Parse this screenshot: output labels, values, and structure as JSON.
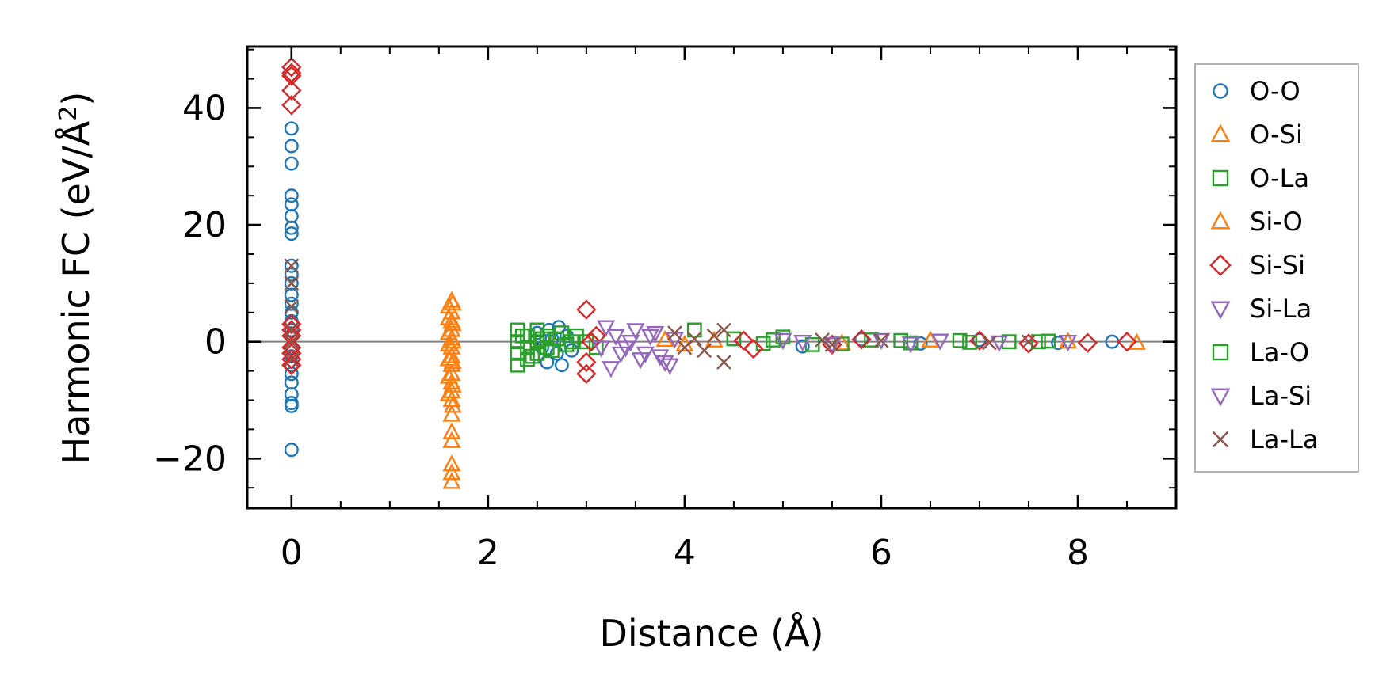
{
  "chart_data": {
    "type": "scatter",
    "title": "",
    "xlabel": "Distance (Å)",
    "ylabel_main": "Harmonic FC (eV/Å",
    "ylabel_sup": "2",
    "ylabel_end": ")",
    "xlim": [
      -0.45,
      9.0
    ],
    "ylim": [
      -28.5,
      50.5
    ],
    "xticks": [
      {
        "v": 0,
        "label": "0"
      },
      {
        "v": 2,
        "label": "2"
      },
      {
        "v": 4,
        "label": "4"
      },
      {
        "v": 6,
        "label": "6"
      },
      {
        "v": 8,
        "label": "8"
      }
    ],
    "yticks": [
      {
        "v": -20,
        "label": "−20"
      },
      {
        "v": 0,
        "label": "0"
      },
      {
        "v": 20,
        "label": "20"
      },
      {
        "v": 40,
        "label": "40"
      }
    ],
    "zero_line": true,
    "grid": false,
    "legend_position": "outside-right",
    "series": [
      {
        "name": "O-O",
        "marker": "circle",
        "color": "#1f77b4",
        "points": [
          [
            0,
            36.5
          ],
          [
            0,
            33.5
          ],
          [
            0,
            30.5
          ],
          [
            0,
            25
          ],
          [
            0,
            23.5
          ],
          [
            0,
            21.5
          ],
          [
            0,
            19.5
          ],
          [
            0,
            18.5
          ],
          [
            0,
            13
          ],
          [
            0,
            11.5
          ],
          [
            0,
            10
          ],
          [
            0,
            8
          ],
          [
            0,
            6.5
          ],
          [
            0,
            5
          ],
          [
            0,
            3.5
          ],
          [
            0,
            2
          ],
          [
            0,
            1
          ],
          [
            0,
            -1
          ],
          [
            0,
            -2.5
          ],
          [
            0,
            -4
          ],
          [
            0,
            -5.5
          ],
          [
            0,
            -7
          ],
          [
            0,
            -9
          ],
          [
            0,
            -10.5
          ],
          [
            0,
            -11
          ],
          [
            0,
            -18.5
          ],
          [
            2.5,
            1.5
          ],
          [
            2.55,
            -1
          ],
          [
            2.6,
            -3.5
          ],
          [
            2.62,
            2
          ],
          [
            2.65,
            0.5
          ],
          [
            2.7,
            -2
          ],
          [
            2.72,
            2.5
          ],
          [
            2.75,
            -4
          ],
          [
            2.8,
            1
          ],
          [
            2.85,
            -1.5
          ],
          [
            5.2,
            -0.8
          ],
          [
            5.8,
            0.4
          ],
          [
            6.4,
            -0.3
          ],
          [
            7.0,
            0.3
          ],
          [
            7.8,
            -0.2
          ],
          [
            8.35,
            0
          ]
        ]
      },
      {
        "name": "O-Si",
        "marker": "triangle-up",
        "color": "#ff7f0e",
        "points": [
          [
            1.63,
            7
          ],
          [
            1.63,
            5
          ],
          [
            1.63,
            3.5
          ],
          [
            1.63,
            2
          ],
          [
            1.63,
            0.5
          ],
          [
            1.63,
            -1
          ],
          [
            1.63,
            -2.5
          ],
          [
            1.63,
            -4
          ],
          [
            1.63,
            -5.5
          ],
          [
            1.63,
            -7
          ],
          [
            1.63,
            -8.5
          ],
          [
            1.63,
            -10
          ],
          [
            1.6,
            6
          ],
          [
            1.6,
            4
          ],
          [
            1.6,
            1.5
          ],
          [
            1.6,
            -0.5
          ],
          [
            1.6,
            -3
          ],
          [
            1.6,
            -6
          ],
          [
            1.6,
            -9
          ],
          [
            1.63,
            -12.5
          ],
          [
            1.63,
            -15.5
          ],
          [
            1.63,
            -17
          ],
          [
            1.63,
            -21
          ],
          [
            1.63,
            -22.5
          ],
          [
            1.63,
            -24
          ],
          [
            3.8,
            0.3
          ],
          [
            4.0,
            -0.5
          ],
          [
            6.5,
            0.2
          ],
          [
            7.9,
            0
          ],
          [
            8.6,
            -0.2
          ]
        ]
      },
      {
        "name": "O-La",
        "marker": "square",
        "color": "#2ca02c",
        "points": [
          [
            2.3,
            2
          ],
          [
            2.3,
            0
          ],
          [
            2.3,
            -2
          ],
          [
            2.3,
            -4
          ],
          [
            2.4,
            1
          ],
          [
            2.4,
            -1
          ],
          [
            2.4,
            -3
          ],
          [
            2.5,
            2
          ],
          [
            2.5,
            0
          ],
          [
            2.5,
            -2
          ],
          [
            2.6,
            1
          ],
          [
            2.6,
            -1
          ],
          [
            2.7,
            0.5
          ],
          [
            2.8,
            -0.5
          ],
          [
            2.9,
            1
          ],
          [
            3.0,
            0
          ],
          [
            3.1,
            -1
          ],
          [
            4.1,
            2
          ],
          [
            4.5,
            0.5
          ],
          [
            4.8,
            -0.3
          ],
          [
            5.0,
            0.8
          ],
          [
            5.3,
            -0.5
          ],
          [
            5.9,
            0.3
          ],
          [
            6.3,
            -0.2
          ],
          [
            6.8,
            0.2
          ],
          [
            7.3,
            0
          ],
          [
            7.7,
            0.1
          ]
        ]
      },
      {
        "name": "Si-O",
        "marker": "triangle-up",
        "color": "#ff7f0e",
        "points": [
          [
            1.64,
            6.5
          ],
          [
            1.64,
            3
          ],
          [
            1.64,
            0
          ],
          [
            1.64,
            -3.5
          ],
          [
            1.64,
            -7.5
          ],
          [
            1.64,
            -11
          ],
          [
            4.3,
            0.2
          ],
          [
            5.6,
            -0.3
          ]
        ]
      },
      {
        "name": "Si-Si",
        "marker": "diamond",
        "color": "#d62728",
        "points": [
          [
            0,
            47
          ],
          [
            0,
            46
          ],
          [
            0,
            45.5
          ],
          [
            0,
            43
          ],
          [
            0,
            40.5
          ],
          [
            0,
            3
          ],
          [
            0,
            2
          ],
          [
            0,
            1
          ],
          [
            0,
            -1
          ],
          [
            0,
            -2
          ],
          [
            0,
            -3
          ],
          [
            0,
            -4
          ],
          [
            3.0,
            5.5
          ],
          [
            3.0,
            -3.5
          ],
          [
            3.0,
            -5.5
          ],
          [
            3.05,
            0
          ],
          [
            3.1,
            1
          ],
          [
            4.6,
            0.2
          ],
          [
            4.7,
            -1.2
          ],
          [
            5.5,
            -0.5
          ],
          [
            5.8,
            0.4
          ],
          [
            7.0,
            0.2
          ],
          [
            7.5,
            -0.3
          ],
          [
            8.1,
            -0.2
          ],
          [
            8.5,
            0
          ]
        ]
      },
      {
        "name": "Si-La",
        "marker": "triangle-down",
        "color": "#9467bd",
        "points": [
          [
            3.2,
            2.5
          ],
          [
            3.3,
            1
          ],
          [
            3.4,
            -1
          ],
          [
            3.5,
            2
          ],
          [
            3.6,
            -2
          ],
          [
            3.7,
            1.5
          ],
          [
            3.8,
            -3.5
          ],
          [
            3.9,
            0.5
          ]
        ]
      },
      {
        "name": "La-O",
        "marker": "square",
        "color": "#2ca02c",
        "points": [
          [
            2.35,
            1
          ],
          [
            2.45,
            -2.5
          ],
          [
            2.55,
            0.5
          ],
          [
            2.65,
            -1.5
          ],
          [
            2.75,
            1.5
          ],
          [
            2.85,
            0
          ],
          [
            4.9,
            0.3
          ],
          [
            5.6,
            -0.4
          ],
          [
            6.2,
            0.2
          ],
          [
            6.9,
            -0.1
          ],
          [
            7.6,
            0
          ]
        ]
      },
      {
        "name": "La-Si",
        "marker": "triangle-down",
        "color": "#9467bd",
        "points": [
          [
            3.15,
            -1
          ],
          [
            3.25,
            -4.5
          ],
          [
            3.35,
            -2
          ],
          [
            3.45,
            0
          ],
          [
            3.55,
            -3
          ],
          [
            3.65,
            1
          ],
          [
            3.75,
            -2.5
          ],
          [
            3.85,
            -4
          ],
          [
            5.0,
            0.3
          ],
          [
            5.2,
            0
          ],
          [
            5.5,
            -0.4
          ],
          [
            6.0,
            0.3
          ],
          [
            6.3,
            -0.3
          ],
          [
            6.6,
            0.2
          ],
          [
            7.2,
            -0.1
          ],
          [
            7.9,
            0
          ]
        ]
      },
      {
        "name": "La-La",
        "marker": "x",
        "color": "#8c564b",
        "points": [
          [
            0,
            13
          ],
          [
            0,
            10
          ],
          [
            0,
            6
          ],
          [
            0,
            2
          ],
          [
            0,
            0
          ],
          [
            0,
            -3
          ],
          [
            3.9,
            1.5
          ],
          [
            4.0,
            -1
          ],
          [
            4.1,
            0.5
          ],
          [
            4.2,
            -1.5
          ],
          [
            4.3,
            1
          ],
          [
            4.4,
            2
          ],
          [
            4.4,
            -3.5
          ],
          [
            5.4,
            0.3
          ],
          [
            5.5,
            -0.5
          ],
          [
            6.0,
            0.2
          ],
          [
            7.1,
            -0.2
          ],
          [
            7.5,
            0
          ]
        ]
      }
    ]
  }
}
